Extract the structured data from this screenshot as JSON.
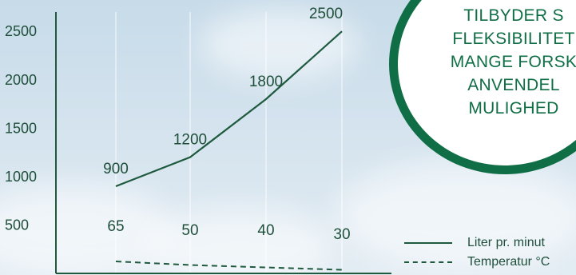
{
  "badge": {
    "lines": [
      "TILBYDER S",
      "FLEKSIBILITET",
      "MANGE FORSK",
      "ANVENDEL",
      "MULIGHED"
    ]
  },
  "legend": {
    "items": [
      {
        "label": "Liter pr. minut",
        "style": "solid"
      },
      {
        "label": "Temperatur °C",
        "style": "dashed"
      }
    ]
  },
  "colors": {
    "line": "#1f5a3f",
    "text": "#1f4f3a",
    "badge_border": "#0f6e45"
  },
  "chart_data": {
    "type": "line",
    "title": "",
    "xlabel": "",
    "ylabel": "",
    "ylim": [
      0,
      2700
    ],
    "yticks": [
      500,
      1000,
      1500,
      2000,
      2500
    ],
    "grid": true,
    "legend_position": "bottom-right",
    "x": [
      1,
      2,
      3,
      4
    ],
    "series": [
      {
        "name": "Liter pr. minut",
        "style": "solid",
        "values": [
          900,
          1200,
          1800,
          2500
        ],
        "labels": [
          "900",
          "1200",
          "1800",
          "2500"
        ]
      },
      {
        "name": "Temperatur °C",
        "style": "dashed",
        "values": [
          65,
          50,
          40,
          30
        ],
        "labels": [
          "65",
          "50",
          "40",
          "30"
        ]
      }
    ]
  }
}
